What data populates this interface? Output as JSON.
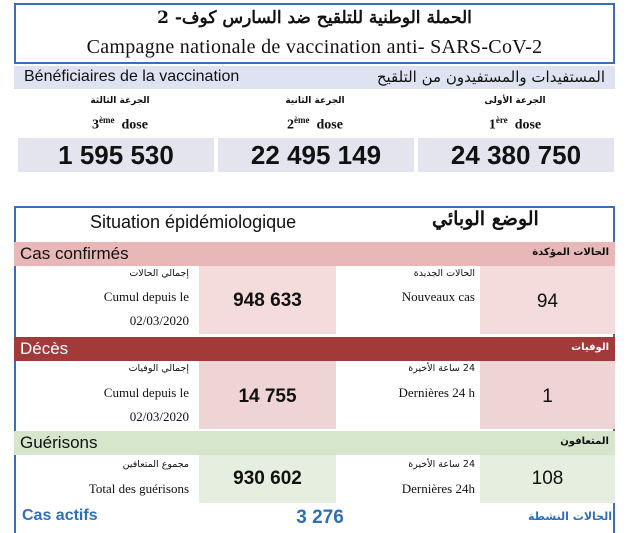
{
  "title": {
    "arabic": "الحملة الوطنية للتلقيح ضد السارس كوف- 2",
    "french": "Campagne nationale de vaccination anti- SARS-CoV-2"
  },
  "beneficiaries": {
    "label_fr": "Bénéficiaires de la vaccination",
    "label_ar": "المستفيدات والمستفيدون من التلقيح",
    "doses": [
      {
        "ar": "الجرعة الثالثة",
        "num": "3",
        "sup": "ème",
        "word": "dose",
        "value": "1 595 530"
      },
      {
        "ar": "الجرعة الثانية",
        "num": "2",
        "sup": "ème",
        "word": "dose",
        "value": "22 495 149"
      },
      {
        "ar": "الجرعة الأولى",
        "num": "1",
        "sup": "ère",
        "word": "dose",
        "value": "24 380 750"
      }
    ]
  },
  "epi": {
    "label_fr": "Situation épidémiologique",
    "label_ar": "الوضع الوبائي",
    "confirmed": {
      "label_fr": "Cas confirmés",
      "label_ar": "الحالات المؤكدة",
      "cumul_ar": "إجمالي الحالات",
      "cumul_fr_1": "Cumul depuis le",
      "cumul_fr_2": "02/03/2020",
      "cumul_value": "948 633",
      "new_ar": "الحالات الجديدة",
      "new_fr": "Nouveaux cas",
      "new_value": "94"
    },
    "deaths": {
      "label_fr": "Décès",
      "label_ar": "الوفيات",
      "cumul_ar": "إجمالي الوفيات",
      "cumul_fr_1": "Cumul depuis le",
      "cumul_fr_2": "02/03/2020",
      "cumul_value": "14 755",
      "new_ar": "24 ساعة الأخيرة",
      "new_fr": "Dernières 24 h",
      "new_value": "1"
    },
    "recovered": {
      "label_fr": "Guérisons",
      "label_ar": "المتعافون",
      "cumul_ar": "مجموع المتعافين",
      "cumul_fr": "Total des guérisons",
      "cumul_value": "930 602",
      "new_ar": "24 ساعة الأخيرة",
      "new_fr": "Dernières 24h",
      "new_value": "108"
    },
    "active": {
      "label_fr": "Cas actifs",
      "label_ar": "الحالات النشطة",
      "value": "3 276"
    }
  },
  "colors": {
    "frame_blue": "#3a6fb6",
    "benef_band": "#dfe3f1",
    "dose_bg": "#e4e4ef",
    "confirmed_band": "#e8b7b7",
    "confirmed_cells": "#f4dcdc",
    "deaths_band": "#a23a3a",
    "deaths_cells": "#eed4d4",
    "recovered_band": "#d6e6cd",
    "recovered_cells": "#e5eedf",
    "active_text": "#2f6fb8"
  }
}
